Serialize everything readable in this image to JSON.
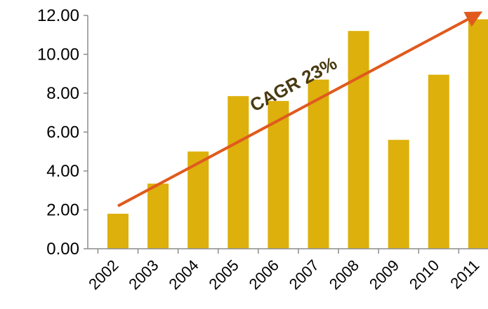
{
  "chart_data": {
    "type": "bar",
    "categories": [
      "2002",
      "2003",
      "2004",
      "2005",
      "2006",
      "2007",
      "2008",
      "2009",
      "2010",
      "2011"
    ],
    "values": [
      1.8,
      3.35,
      5.0,
      7.85,
      7.6,
      8.7,
      11.2,
      5.6,
      8.95,
      11.8
    ],
    "ylim": [
      0,
      12
    ],
    "yticks": [
      "0.00",
      "2.00",
      "4.00",
      "6.00",
      "8.00",
      "10.00",
      "12.00"
    ],
    "title": "",
    "xlabel": "",
    "ylabel": "",
    "grid": false,
    "bar_color": "#ddb00b",
    "annotation": {
      "text": "CAGR 23%",
      "color": "#4a3a12",
      "arrow_color": "#e05a1e",
      "arrow_start": {
        "x": "2002",
        "y": 2.2
      },
      "arrow_end": {
        "x": "2011",
        "y": 12.1
      }
    }
  }
}
